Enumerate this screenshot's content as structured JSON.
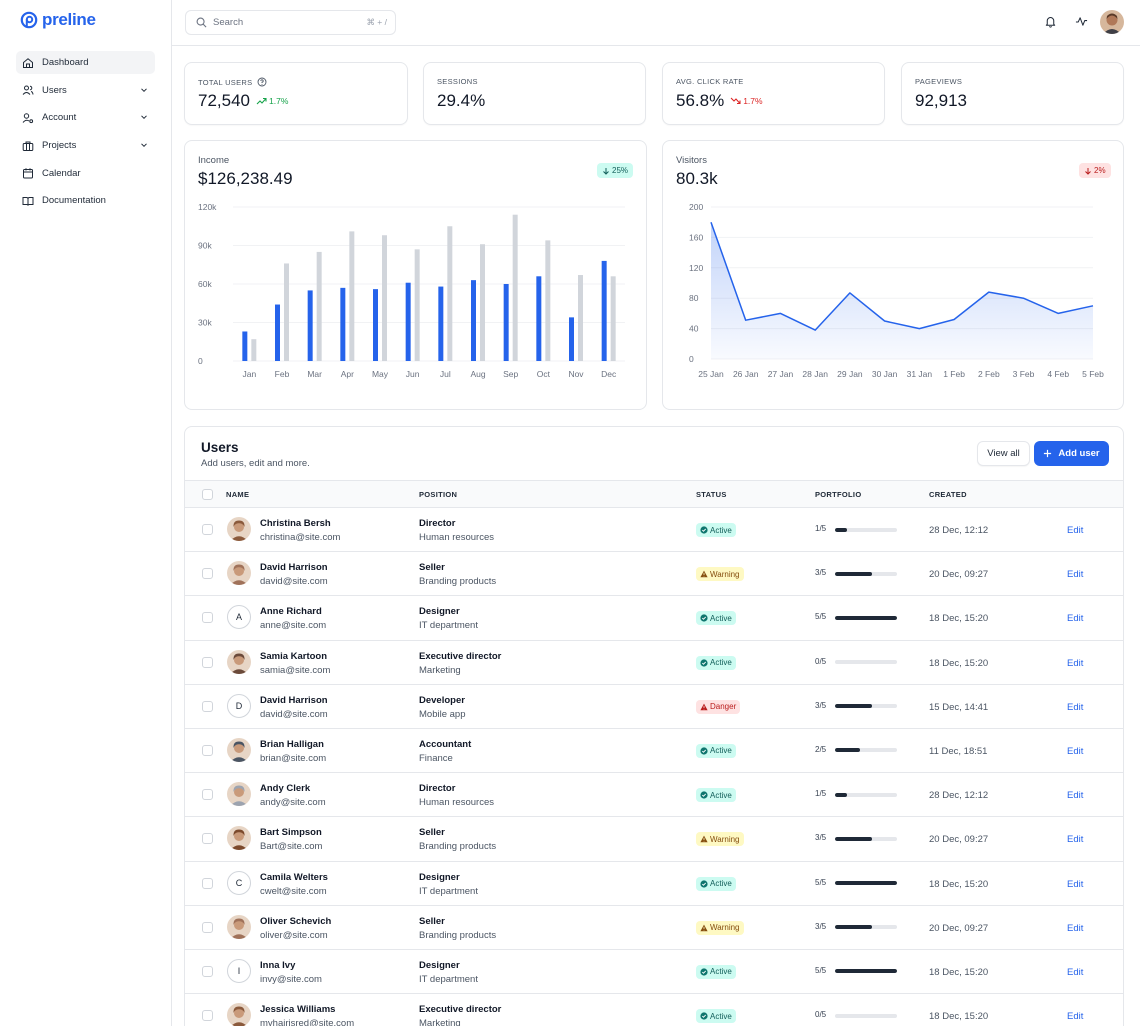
{
  "brand": {
    "name": "preline",
    "color": "#2563eb"
  },
  "sidebar": {
    "items": [
      {
        "label": "Dashboard",
        "icon": "home-icon",
        "active": true,
        "chevron": false
      },
      {
        "label": "Users",
        "icon": "users-icon",
        "active": false,
        "chevron": true
      },
      {
        "label": "Account",
        "icon": "account-icon",
        "active": false,
        "chevron": true
      },
      {
        "label": "Projects",
        "icon": "briefcase-icon",
        "active": false,
        "chevron": true
      },
      {
        "label": "Calendar",
        "icon": "calendar-icon",
        "active": false,
        "chevron": false
      },
      {
        "label": "Documentation",
        "icon": "book-icon",
        "active": false,
        "chevron": false
      }
    ]
  },
  "header": {
    "search_placeholder": "Search",
    "search_shortcut": "⌘ + /",
    "icons": [
      "bell-icon",
      "activity-icon",
      "user-avatar"
    ]
  },
  "stats": [
    {
      "label": "TOTAL USERS",
      "value": "72,540",
      "delta": "1.7%",
      "trend": "up",
      "help_icon": true
    },
    {
      "label": "SESSIONS",
      "value": "29.4%",
      "delta": "",
      "trend": "",
      "help_icon": false
    },
    {
      "label": "AVG. CLICK RATE",
      "value": "56.8%",
      "delta": "1.7%",
      "trend": "down",
      "help_icon": false
    },
    {
      "label": "PAGEVIEWS",
      "value": "92,913",
      "delta": "",
      "trend": "",
      "help_icon": false
    }
  ],
  "income_card": {
    "title": "Income",
    "value": "$126,238.49",
    "badge": "25%"
  },
  "visitors_card": {
    "title": "Visitors",
    "value": "80.3k",
    "badge": "2%"
  },
  "chart_data": [
    {
      "type": "bar",
      "title": "Income",
      "categories": [
        "Jan",
        "Feb",
        "Mar",
        "Apr",
        "May",
        "Jun",
        "Jul",
        "Aug",
        "Sep",
        "Oct",
        "Nov",
        "Dec"
      ],
      "series": [
        {
          "color": "#2563eb",
          "values": [
            23000,
            44000,
            55000,
            57000,
            56000,
            61000,
            58000,
            63000,
            60000,
            66000,
            34000,
            78000
          ]
        },
        {
          "color": "#d1d5db",
          "values": [
            17000,
            76000,
            85000,
            101000,
            98000,
            87000,
            105000,
            91000,
            114000,
            94000,
            67000,
            66000
          ]
        }
      ],
      "yticks": [
        "120k",
        "90k",
        "60k",
        "30k",
        "0"
      ],
      "ylim": [
        0,
        120000
      ],
      "grid": true
    },
    {
      "type": "area",
      "title": "Visitors",
      "categories": [
        "25 Jan",
        "26 Jan",
        "27 Jan",
        "28 Jan",
        "29 Jan",
        "30 Jan",
        "31 Jan",
        "1 Feb",
        "2 Feb",
        "3 Feb",
        "4 Feb",
        "5 Feb"
      ],
      "values": [
        180,
        51,
        60,
        38,
        87,
        50,
        40,
        52,
        88,
        80,
        60,
        70
      ],
      "color": "#2563eb",
      "yticks": [
        "200",
        "160",
        "120",
        "80",
        "40",
        "0"
      ],
      "ylim": [
        0,
        200
      ],
      "grid": true
    }
  ],
  "users": {
    "title": "Users",
    "subtitle": "Add users, edit and more.",
    "view_all_label": "View all",
    "add_user_label": "Add user",
    "columns": [
      "NAME",
      "POSITION",
      "STATUS",
      "PORTFOLIO",
      "CREATED"
    ],
    "edit_label": "Edit",
    "rows": [
      {
        "name": "Christina Bersh",
        "email": "christina@site.com",
        "position": "Director",
        "department": "Human resources",
        "status": "Active",
        "portfolio": "1/5",
        "progress": 0.2,
        "created": "28 Dec, 12:12",
        "avatar": "photo",
        "avatar_color": "#8b5a3c",
        "initial": ""
      },
      {
        "name": "David Harrison",
        "email": "david@site.com",
        "position": "Seller",
        "department": "Branding products",
        "status": "Warning",
        "portfolio": "3/5",
        "progress": 0.6,
        "created": "20 Dec, 09:27",
        "avatar": "photo",
        "avatar_color": "#a0725a",
        "initial": ""
      },
      {
        "name": "Anne Richard",
        "email": "anne@site.com",
        "position": "Designer",
        "department": "IT department",
        "status": "Active",
        "portfolio": "5/5",
        "progress": 1.0,
        "created": "18 Dec, 15:20",
        "avatar": "initial",
        "avatar_color": "",
        "initial": "A"
      },
      {
        "name": "Samia Kartoon",
        "email": "samia@site.com",
        "position": "Executive director",
        "department": "Marketing",
        "status": "Active",
        "portfolio": "0/5",
        "progress": 0.0,
        "created": "18 Dec, 15:20",
        "avatar": "photo",
        "avatar_color": "#6b4a3a",
        "initial": ""
      },
      {
        "name": "David Harrison",
        "email": "david@site.com",
        "position": "Developer",
        "department": "Mobile app",
        "status": "Danger",
        "portfolio": "3/5",
        "progress": 0.6,
        "created": "15 Dec, 14:41",
        "avatar": "initial",
        "avatar_color": "",
        "initial": "D"
      },
      {
        "name": "Brian Halligan",
        "email": "brian@site.com",
        "position": "Accountant",
        "department": "Finance",
        "status": "Active",
        "portfolio": "2/5",
        "progress": 0.4,
        "created": "11 Dec, 18:51",
        "avatar": "photo",
        "avatar_color": "#4b5563",
        "initial": ""
      },
      {
        "name": "Andy Clerk",
        "email": "andy@site.com",
        "position": "Director",
        "department": "Human resources",
        "status": "Active",
        "portfolio": "1/5",
        "progress": 0.2,
        "created": "28 Dec, 12:12",
        "avatar": "photo",
        "avatar_color": "#9ca3af",
        "initial": ""
      },
      {
        "name": "Bart Simpson",
        "email": "Bart@site.com",
        "position": "Seller",
        "department": "Branding products",
        "status": "Warning",
        "portfolio": "3/5",
        "progress": 0.6,
        "created": "20 Dec, 09:27",
        "avatar": "photo",
        "avatar_color": "#7c4a2d",
        "initial": ""
      },
      {
        "name": "Camila Welters",
        "email": "cwelt@site.com",
        "position": "Designer",
        "department": "IT department",
        "status": "Active",
        "portfolio": "5/5",
        "progress": 1.0,
        "created": "18 Dec, 15:20",
        "avatar": "initial",
        "avatar_color": "",
        "initial": "C"
      },
      {
        "name": "Oliver Schevich",
        "email": "oliver@site.com",
        "position": "Seller",
        "department": "Branding products",
        "status": "Warning",
        "portfolio": "3/5",
        "progress": 0.6,
        "created": "20 Dec, 09:27",
        "avatar": "photo",
        "avatar_color": "#a0725a",
        "initial": ""
      },
      {
        "name": "Inna Ivy",
        "email": "invy@site.com",
        "position": "Designer",
        "department": "IT department",
        "status": "Active",
        "portfolio": "5/5",
        "progress": 1.0,
        "created": "18 Dec, 15:20",
        "avatar": "initial",
        "avatar_color": "",
        "initial": "I"
      },
      {
        "name": "Jessica Williams",
        "email": "myhairisred@site.com",
        "position": "Executive director",
        "department": "Marketing",
        "status": "Active",
        "portfolio": "0/5",
        "progress": 0.0,
        "created": "18 Dec, 15:20",
        "avatar": "photo",
        "avatar_color": "#8b5a3c",
        "initial": ""
      }
    ]
  }
}
